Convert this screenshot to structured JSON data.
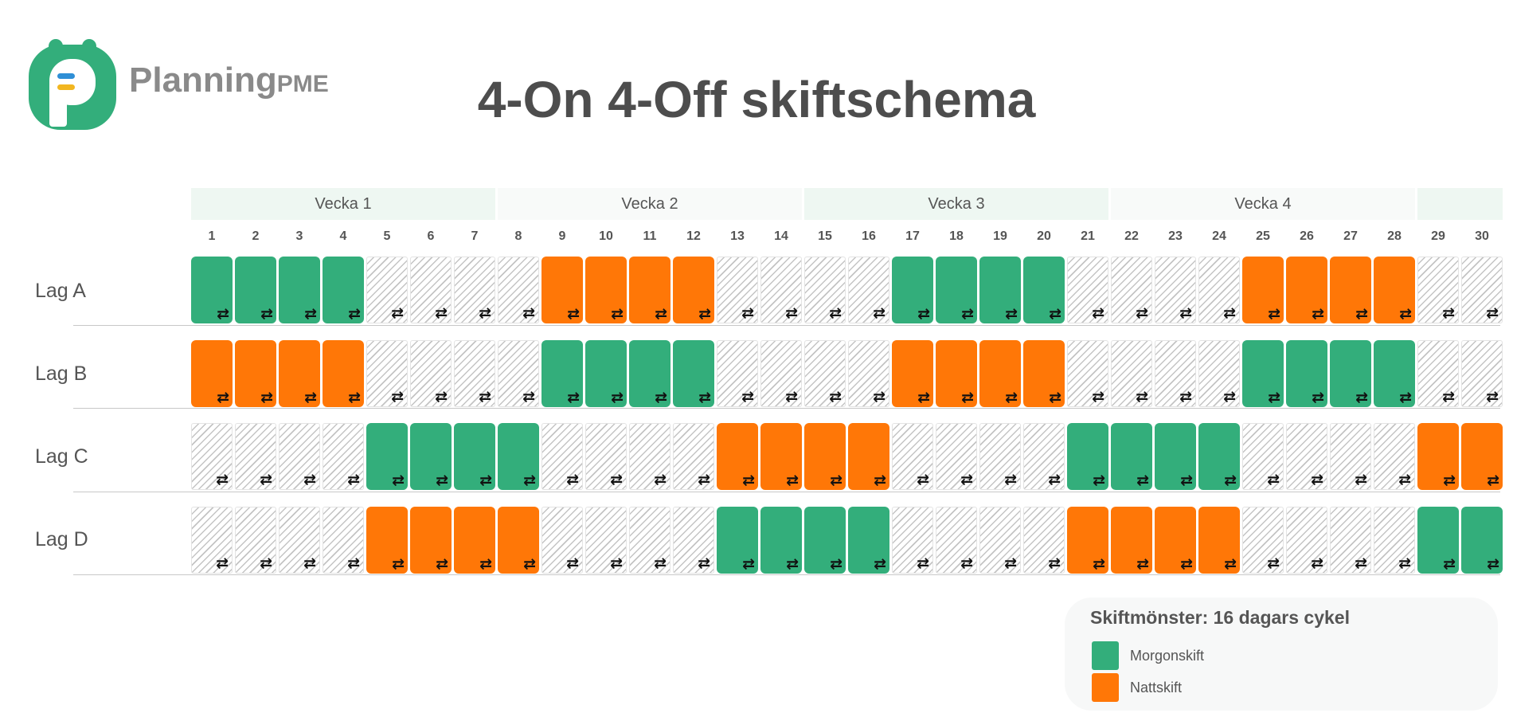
{
  "logo": {
    "name": "Planning",
    "suffix": "PME",
    "colors": {
      "green": "#33ae7b",
      "blue": "#2f8fd6",
      "yellow": "#f2b620",
      "text": "#8a8a8a"
    }
  },
  "title": "4-On 4-Off skiftschema",
  "weeks": [
    {
      "label": "Vecka 1",
      "start_day": 1,
      "end_day": 7,
      "style": "shade"
    },
    {
      "label": "Vecka 2",
      "start_day": 8,
      "end_day": 14,
      "style": "light"
    },
    {
      "label": "Vecka 3",
      "start_day": 15,
      "end_day": 21,
      "style": "shade"
    },
    {
      "label": "Vecka 4",
      "start_day": 22,
      "end_day": 28,
      "style": "light"
    },
    {
      "label": "",
      "start_day": 29,
      "end_day": 30,
      "style": "shade"
    }
  ],
  "days": [
    1,
    2,
    3,
    4,
    5,
    6,
    7,
    8,
    9,
    10,
    11,
    12,
    13,
    14,
    15,
    16,
    17,
    18,
    19,
    20,
    21,
    22,
    23,
    24,
    25,
    26,
    27,
    28,
    29,
    30
  ],
  "lanes": [
    {
      "label": "Lag A",
      "shifts": "MMMMOOOONNNNOOOOMMMMOOOONNNNOO"
    },
    {
      "label": "Lag B",
      "shifts": "NNNNOOOOMMMMOOOONNNNOOOOMMMMOO"
    },
    {
      "label": "Lag C",
      "shifts": "OOOOMMMMOOOONNNNOOOOMMMMOOOONN"
    },
    {
      "label": "Lag D",
      "shifts": "OOOONNNNOOOOMMMMOOOONNNNOOOOMM"
    }
  ],
  "cycle_icon": "repeat-icon",
  "colors": {
    "morning": "#33ae7b",
    "night": "#ff7707",
    "off_stripe": "#c4c4c4"
  },
  "legend": {
    "title": "Skiftmönster: 16 dagars cykel",
    "items": [
      {
        "key": "morning",
        "label": "Morgonskift"
      },
      {
        "key": "night",
        "label": "Nattskift"
      }
    ]
  }
}
